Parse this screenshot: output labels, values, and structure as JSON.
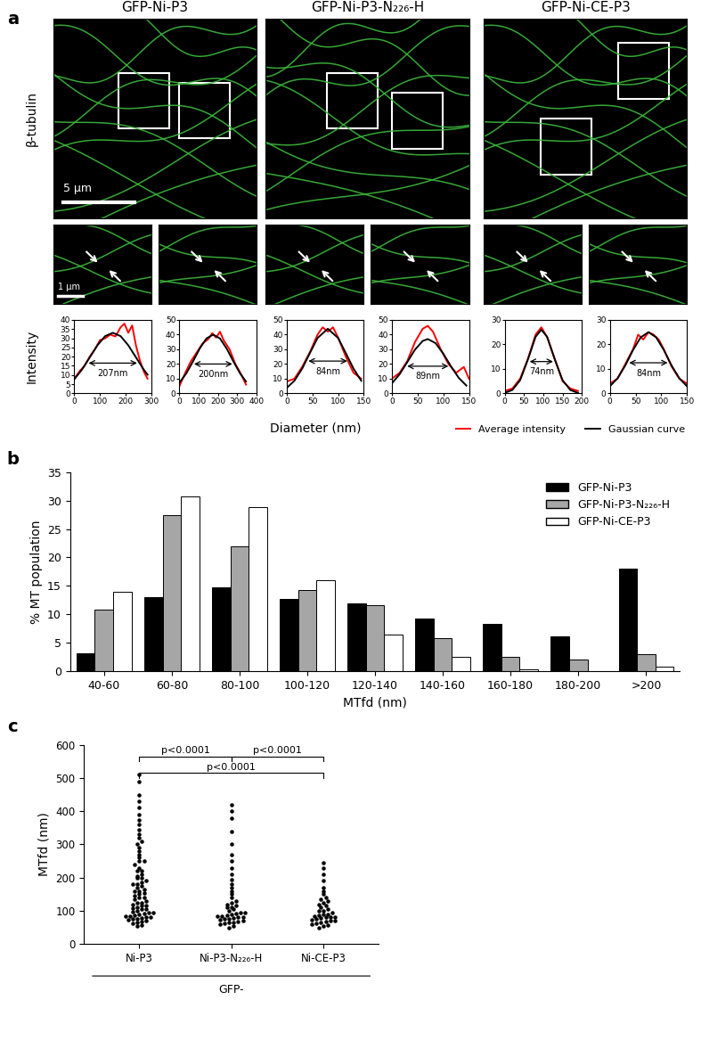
{
  "figure": {
    "panel_labels": [
      "a",
      "b",
      "c"
    ],
    "image_row_label": "β-tubulin",
    "image_titles": [
      "GFP-Ni-P3",
      "GFP-Ni-P3-N₂₂₆-H",
      "GFP-Ni-CE-P3"
    ],
    "scale_bars": [
      "5 μm",
      "1 μm"
    ]
  },
  "chart_data": [
    {
      "type": "line",
      "y_label": "Intensity",
      "x_label": "Diameter (nm)",
      "legend": "lower right",
      "profiles": [
        {
          "xlim": [
            0,
            300
          ],
          "ylim": [
            0,
            40
          ],
          "xticks": [
            0,
            100,
            200,
            300
          ],
          "yticks": [
            0,
            5,
            10,
            15,
            20,
            25,
            30,
            35,
            40
          ],
          "annotations": [
            "207nm"
          ],
          "series": [
            {
              "name": "Average intensity",
              "color": "#ff0000",
              "x": [
                0,
                20,
                40,
                60,
                80,
                100,
                120,
                140,
                160,
                180,
                195,
                210,
                225,
                240,
                255,
                270,
                285
              ],
              "values": [
                8,
                12,
                15,
                20,
                24,
                29,
                30,
                32,
                31,
                36,
                38,
                33,
                37,
                26,
                18,
                12,
                8
              ]
            },
            {
              "name": "Gaussian curve",
              "color": "#000000",
              "x": [
                0,
                30,
                60,
                90,
                120,
                150,
                180,
                210,
                240,
                270,
                285
              ],
              "values": [
                7.7,
                13.0,
                19.6,
                26.2,
                31.2,
                33.0,
                31.2,
                26.2,
                19.6,
                13.0,
                10.2
              ]
            }
          ]
        },
        {
          "xlim": [
            0,
            400
          ],
          "ylim": [
            0,
            50
          ],
          "xticks": [
            0,
            100,
            200,
            300,
            400
          ],
          "yticks": [
            0,
            10,
            20,
            30,
            40,
            50
          ],
          "annotations": [
            "200nm"
          ],
          "series": [
            {
              "name": "Average intensity",
              "color": "#ff0000",
              "x": [
                0,
                30,
                60,
                90,
                120,
                150,
                170,
                190,
                210,
                230,
                260,
                290,
                320,
                345
              ],
              "values": [
                5,
                14,
                22,
                28,
                34,
                37,
                41,
                38,
                42,
                36,
                30,
                20,
                13,
                6
              ]
            },
            {
              "name": "Gaussian curve",
              "color": "#000000",
              "x": [
                0,
                35,
                70,
                105,
                140,
                175,
                210,
                245,
                280,
                315,
                345
              ],
              "values": [
                7.3,
                13.5,
                21.7,
                30.5,
                37.4,
                40.0,
                37.4,
                30.5,
                21.7,
                13.5,
                8.1
              ]
            }
          ]
        },
        {
          "xlim": [
            0,
            150
          ],
          "ylim": [
            0,
            50
          ],
          "xticks": [
            0,
            50,
            100,
            150
          ],
          "yticks": [
            0,
            10,
            20,
            30,
            40,
            50
          ],
          "annotations": [
            "84nm"
          ],
          "series": [
            {
              "name": "Average intensity",
              "color": "#ff0000",
              "x": [
                0,
                15,
                30,
                45,
                60,
                70,
                80,
                90,
                100,
                115,
                130,
                145
              ],
              "values": [
                8,
                10,
                18,
                28,
                40,
                45,
                42,
                45,
                38,
                25,
                14,
                10
              ]
            },
            {
              "name": "Gaussian curve",
              "color": "#000000",
              "x": [
                0,
                15,
                30,
                45,
                60,
                80,
                100,
                115,
                130,
                145
              ],
              "values": [
                3.7,
                8.6,
                16.8,
                27.4,
                37.7,
                44.0,
                37.7,
                27.4,
                16.8,
                8.6
              ]
            }
          ]
        },
        {
          "xlim": [
            0,
            150
          ],
          "ylim": [
            0,
            50
          ],
          "xticks": [
            0,
            50,
            100,
            150
          ],
          "yticks": [
            0,
            10,
            20,
            30,
            40,
            50
          ],
          "annotations": [
            "89nm"
          ],
          "series": [
            {
              "name": "Average intensity",
              "color": "#ff0000",
              "x": [
                0,
                15,
                30,
                45,
                60,
                70,
                80,
                95,
                110,
                125,
                140,
                150
              ],
              "values": [
                10,
                14,
                22,
                35,
                44,
                46,
                42,
                30,
                20,
                14,
                18,
                10
              ]
            },
            {
              "name": "Gaussian curve",
              "color": "#000000",
              "x": [
                0,
                15,
                30,
                45,
                60,
                70,
                85,
                100,
                115,
                130,
                145
              ],
              "values": [
                6.8,
                13.0,
                21.3,
                29.8,
                35.7,
                37.0,
                34.2,
                27.1,
                18.4,
                10.6,
                5.3
              ]
            }
          ]
        },
        {
          "xlim": [
            0,
            200
          ],
          "ylim": [
            0,
            30
          ],
          "xticks": [
            0,
            50,
            100,
            150,
            200
          ],
          "yticks": [
            0,
            10,
            20,
            30
          ],
          "annotations": [
            "74nm"
          ],
          "series": [
            {
              "name": "Average intensity",
              "color": "#ff0000",
              "x": [
                0,
                20,
                40,
                60,
                80,
                95,
                110,
                130,
                150,
                170,
                190
              ],
              "values": [
                1,
                2,
                6,
                14,
                24,
                27,
                23,
                14,
                5,
                2,
                1
              ]
            },
            {
              "name": "Gaussian curve",
              "color": "#000000",
              "x": [
                0,
                20,
                40,
                60,
                80,
                95,
                110,
                130,
                150,
                170,
                190
              ],
              "values": [
                0.2,
                1.4,
                5.4,
                13.8,
                23.1,
                26.0,
                23.1,
                13.8,
                5.4,
                1.4,
                0.2
              ]
            }
          ]
        },
        {
          "xlim": [
            0,
            150
          ],
          "ylim": [
            0,
            30
          ],
          "xticks": [
            0,
            50,
            100,
            150
          ],
          "yticks": [
            0,
            10,
            20,
            30
          ],
          "annotations": [
            "84nm"
          ],
          "series": [
            {
              "name": "Average intensity",
              "color": "#ff0000",
              "x": [
                0,
                15,
                30,
                45,
                55,
                65,
                75,
                85,
                95,
                105,
                120,
                135,
                150
              ],
              "values": [
                4,
                6,
                12,
                18,
                24,
                22,
                25,
                24,
                22,
                18,
                11,
                6,
                4
              ]
            },
            {
              "name": "Gaussian curve",
              "color": "#000000",
              "x": [
                0,
                15,
                30,
                45,
                60,
                75,
                90,
                105,
                120,
                135,
                150
              ],
              "values": [
                2.9,
                6.2,
                11.4,
                17.7,
                22.9,
                25.0,
                22.9,
                17.7,
                11.4,
                6.2,
                2.9
              ]
            }
          ]
        }
      ]
    },
    {
      "type": "bar",
      "x_label": "MTfd (nm)",
      "y_label": "% MT population",
      "legend": "upper right",
      "categories": [
        "40-60",
        "60-80",
        "80-100",
        "100-120",
        "120-140",
        "140-160",
        "160-180",
        "180-200",
        ">200"
      ],
      "ylim": [
        0,
        35
      ],
      "yticks": [
        0,
        5,
        10,
        15,
        20,
        25,
        30,
        35
      ],
      "series": [
        {
          "name": "GFP-Ni-P3",
          "color": "#000000",
          "values": [
            3.1,
            13.1,
            14.8,
            12.7,
            11.9,
            9.2,
            8.4,
            6.2,
            18.1
          ]
        },
        {
          "name": "GFP-Ni-P3-N₂₂₆-H",
          "color": "#a6a6a6",
          "values": [
            10.8,
            27.4,
            22.0,
            14.3,
            11.6,
            5.8,
            2.6,
            2.1,
            3.0
          ]
        },
        {
          "name": "GFP-Ni-CE-P3",
          "color": "#ffffff",
          "values": [
            14.0,
            30.7,
            28.9,
            16.0,
            6.4,
            2.5,
            0.4,
            0.0,
            0.8
          ]
        }
      ]
    },
    {
      "type": "scatter",
      "y_label": "MTfd (nm)",
      "group_label": "GFP-",
      "color": "#000000",
      "categories": [
        "Ni-P3",
        "Ni-P3-N₂₂₆-H",
        "Ni-CE-P3"
      ],
      "ylim": [
        0,
        600
      ],
      "yticks": [
        0,
        100,
        200,
        300,
        400,
        500,
        600
      ],
      "values": [
        [
          55,
          58,
          62,
          65,
          68,
          70,
          72,
          75,
          75,
          78,
          80,
          82,
          85,
          85,
          88,
          90,
          92,
          95,
          95,
          98,
          100,
          105,
          105,
          108,
          110,
          115,
          115,
          120,
          125,
          125,
          130,
          135,
          140,
          140,
          145,
          150,
          155,
          160,
          160,
          165,
          170,
          175,
          180,
          180,
          185,
          190,
          200,
          200,
          205,
          210,
          220,
          220,
          230,
          240,
          250,
          250,
          260,
          270,
          280,
          290,
          300,
          310,
          320,
          330,
          345,
          360,
          375,
          390,
          410,
          430,
          450,
          490,
          510
        ],
        [
          50,
          55,
          60,
          62,
          65,
          65,
          68,
          70,
          72,
          75,
          75,
          78,
          80,
          82,
          85,
          85,
          88,
          90,
          92,
          95,
          95,
          100,
          105,
          110,
          110,
          115,
          120,
          125,
          130,
          140,
          150,
          160,
          170,
          180,
          195,
          210,
          230,
          250,
          270,
          300,
          340,
          380,
          400,
          420
        ],
        [
          50,
          55,
          58,
          60,
          62,
          65,
          68,
          70,
          70,
          72,
          75,
          78,
          80,
          80,
          82,
          85,
          88,
          90,
          90,
          95,
          100,
          100,
          105,
          110,
          115,
          120,
          125,
          130,
          135,
          140,
          150,
          160,
          170,
          190,
          210,
          230,
          245
        ]
      ],
      "comparisons": [
        {
          "pair": [
            "Ni-P3",
            "Ni-P3-N₂₂₆-H"
          ],
          "label": "p<0.0001"
        },
        {
          "pair": [
            "Ni-P3-N₂₂₆-H",
            "Ni-CE-P3"
          ],
          "label": "p<0.0001"
        },
        {
          "pair": [
            "Ni-P3",
            "Ni-CE-P3"
          ],
          "label": "p<0.0001"
        }
      ]
    }
  ]
}
